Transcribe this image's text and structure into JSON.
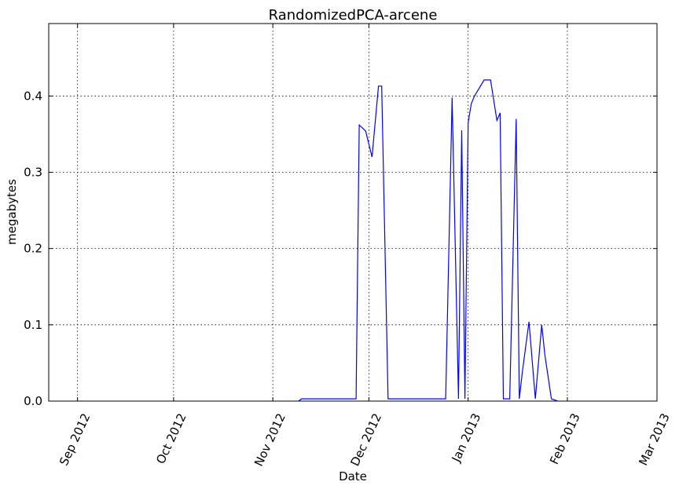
{
  "chart_data": {
    "type": "line",
    "title": "RandomizedPCA-arcene",
    "xlabel": "Date",
    "ylabel": "megabytes",
    "x_tick_labels": [
      "Sep 2012",
      "Oct 2012",
      "Nov 2012",
      "Dec 2012",
      "Jan 2013",
      "Feb 2013",
      "Mar 2013"
    ],
    "x_tick_dates": [
      "2012-09-01",
      "2012-10-01",
      "2012-11-01",
      "2012-12-01",
      "2013-01-01",
      "2013-02-01",
      "2013-03-01"
    ],
    "xlim": [
      "2012-08-23",
      "2013-03-01"
    ],
    "y_tick_labels": [
      "0.0",
      "0.1",
      "0.2",
      "0.3",
      "0.4"
    ],
    "y_tick_values": [
      0.0,
      0.1,
      0.2,
      0.3,
      0.4
    ],
    "ylim": [
      0,
      0.495
    ],
    "grid": true,
    "series": [
      {
        "color": "#0000ff",
        "x": [
          "2012-11-09",
          "2012-11-10",
          "2012-11-27",
          "2012-11-28",
          "2012-11-30",
          "2012-12-02",
          "2012-12-04",
          "2012-12-05",
          "2012-12-07",
          "2012-12-08",
          "2012-12-25",
          "2012-12-27",
          "2012-12-29",
          "2012-12-30",
          "2012-12-31",
          "2013-01-01",
          "2013-01-02",
          "2013-01-03",
          "2013-01-06",
          "2013-01-08",
          "2013-01-10",
          "2013-01-11",
          "2013-01-12",
          "2013-01-14",
          "2013-01-16",
          "2013-01-17",
          "2013-01-18",
          "2013-01-20",
          "2013-01-22",
          "2013-01-24",
          "2013-01-25",
          "2013-01-27",
          "2013-01-29"
        ],
        "y": [
          0.0,
          0.003,
          0.003,
          0.362,
          0.354,
          0.32,
          0.413,
          0.413,
          0.003,
          0.003,
          0.003,
          0.398,
          0.003,
          0.355,
          0.003,
          0.365,
          0.39,
          0.4,
          0.421,
          0.421,
          0.368,
          0.378,
          0.003,
          0.003,
          0.37,
          0.003,
          0.04,
          0.104,
          0.003,
          0.1,
          0.06,
          0.003,
          0.0
        ]
      }
    ]
  }
}
